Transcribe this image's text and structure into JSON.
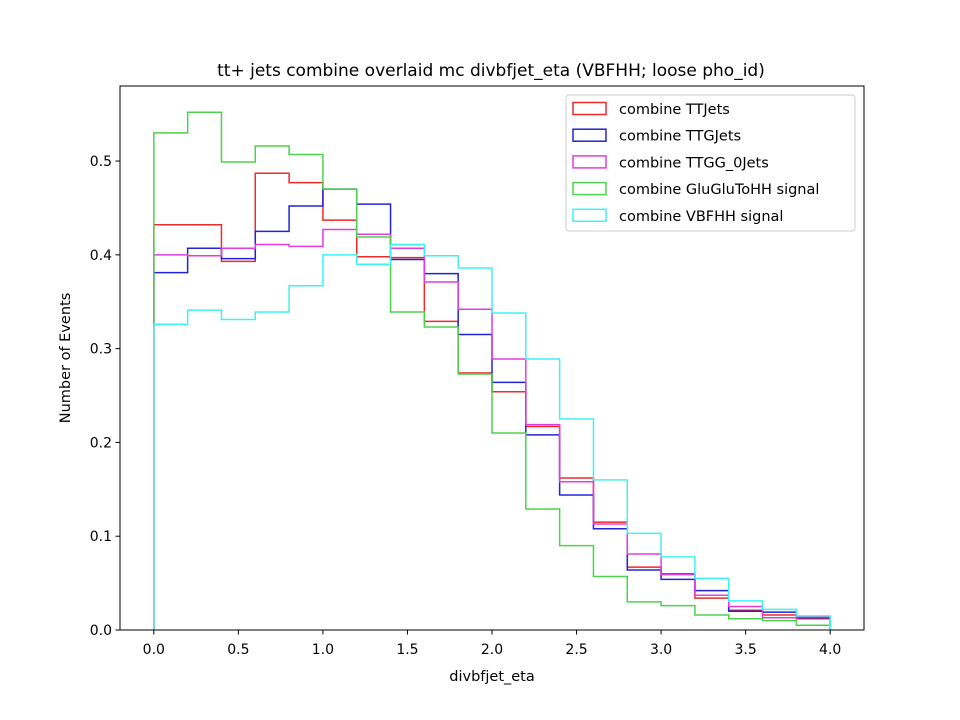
{
  "chart_data": {
    "type": "step-histogram",
    "title": "tt+ jets combine overlaid mc divbfjet_eta (VBFHH; loose pho_id)",
    "xlabel": "divbfjet_eta",
    "ylabel": "Number of Events",
    "xlim": [
      -0.2,
      4.2
    ],
    "ylim": [
      0.0,
      0.58
    ],
    "xticks": [
      0.0,
      0.5,
      1.0,
      1.5,
      2.0,
      2.5,
      3.0,
      3.5,
      4.0
    ],
    "xtick_labels": [
      "0.0",
      "0.5",
      "1.0",
      "1.5",
      "2.0",
      "2.5",
      "3.0",
      "3.5",
      "4.0"
    ],
    "yticks": [
      0.0,
      0.1,
      0.2,
      0.3,
      0.4,
      0.5
    ],
    "ytick_labels": [
      "0.0",
      "0.1",
      "0.2",
      "0.3",
      "0.4",
      "0.5"
    ],
    "legend_position": "top-right",
    "bin_edges": [
      0.0,
      0.2,
      0.4,
      0.6,
      0.8,
      1.0,
      1.2,
      1.4,
      1.6,
      1.8,
      2.0,
      2.2,
      2.4,
      2.6,
      2.8,
      3.0,
      3.2,
      3.4,
      3.6,
      3.8,
      4.0
    ],
    "series": [
      {
        "name": "combine TTJets",
        "color": "#ee2a2a",
        "values": [
          0.432,
          0.432,
          0.393,
          0.487,
          0.477,
          0.437,
          0.398,
          0.397,
          0.329,
          0.274,
          0.254,
          0.217,
          0.162,
          0.115,
          0.067,
          0.06,
          0.034,
          0.021,
          0.016,
          0.012
        ]
      },
      {
        "name": "combine TTGJets",
        "color": "#2323d8",
        "values": [
          0.381,
          0.407,
          0.396,
          0.425,
          0.452,
          0.47,
          0.454,
          0.395,
          0.38,
          0.315,
          0.264,
          0.208,
          0.144,
          0.108,
          0.064,
          0.054,
          0.042,
          0.02,
          0.019,
          0.013
        ]
      },
      {
        "name": "combine TTGG_0Jets",
        "color": "#e23de2",
        "values": [
          0.4,
          0.399,
          0.407,
          0.411,
          0.409,
          0.427,
          0.422,
          0.407,
          0.371,
          0.342,
          0.289,
          0.219,
          0.158,
          0.113,
          0.081,
          0.059,
          0.037,
          0.025,
          0.013,
          0.014
        ]
      },
      {
        "name": "combine GluGluToHH signal",
        "color": "#4dd24d",
        "values": [
          0.53,
          0.552,
          0.499,
          0.516,
          0.507,
          0.47,
          0.419,
          0.339,
          0.323,
          0.273,
          0.21,
          0.129,
          0.09,
          0.057,
          0.03,
          0.026,
          0.016,
          0.012,
          0.01,
          0.005
        ]
      },
      {
        "name": "combine VBFHH signal",
        "color": "#3ff2f2",
        "values": [
          0.326,
          0.341,
          0.331,
          0.339,
          0.367,
          0.4,
          0.39,
          0.411,
          0.399,
          0.386,
          0.338,
          0.289,
          0.225,
          0.16,
          0.103,
          0.078,
          0.055,
          0.031,
          0.022,
          0.015
        ]
      }
    ]
  }
}
